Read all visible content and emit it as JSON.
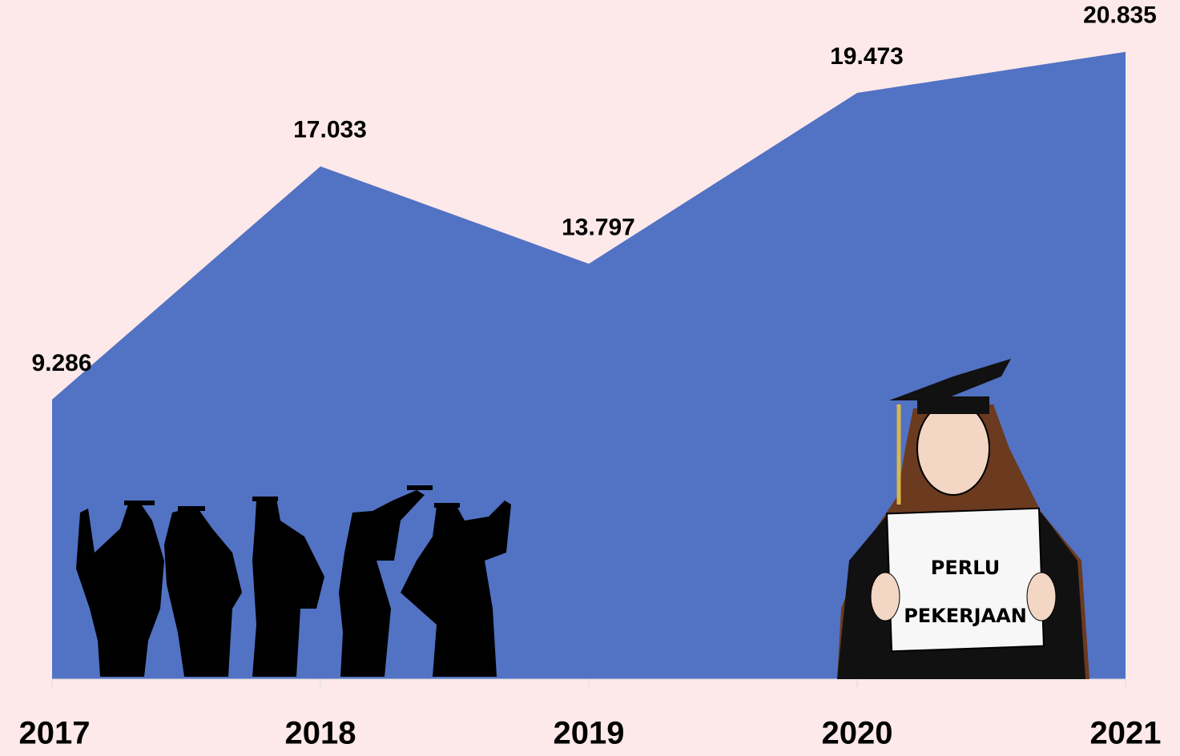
{
  "chart_data": {
    "type": "area",
    "categories": [
      "2017",
      "2018",
      "2019",
      "2020",
      "2021"
    ],
    "values": [
      9286,
      17033,
      13797,
      19473,
      20835
    ],
    "value_labels": [
      "9.286",
      "17.033",
      "13.797",
      "19.473",
      "20.835"
    ],
    "color": "#5272c4",
    "ylim": [
      0,
      22000
    ],
    "annotations": [
      "PERLU",
      "PEKERJAAN"
    ]
  }
}
